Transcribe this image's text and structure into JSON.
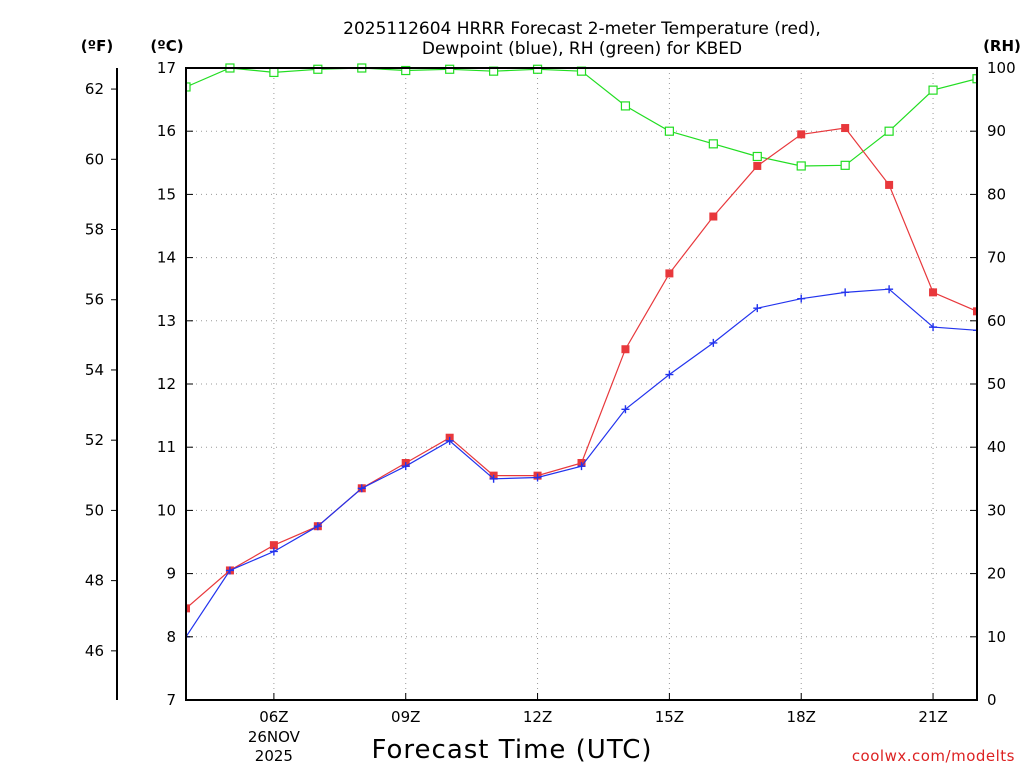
{
  "chart_data": {
    "type": "line",
    "title_line1": "2025112604 HRRR Forecast 2-meter Temperature (red),",
    "title_line2": "Dewpoint (blue), RH (green) for KBED",
    "xlabel": "Forecast Time (UTC)",
    "credit": "coolwx.com/modelts",
    "x_hours": [
      4,
      5,
      6,
      7,
      8,
      9,
      10,
      11,
      12,
      13,
      14,
      15,
      16,
      17,
      18,
      19,
      20,
      21,
      22
    ],
    "xlim": [
      4,
      22
    ],
    "x_ticks": [
      {
        "hour": 6,
        "label": "06Z",
        "sub1": "26NOV",
        "sub2": "2025"
      },
      {
        "hour": 9,
        "label": "09Z"
      },
      {
        "hour": 12,
        "label": "12Z"
      },
      {
        "hour": 15,
        "label": "15Z"
      },
      {
        "hour": 18,
        "label": "18Z"
      },
      {
        "hour": 21,
        "label": "21Z"
      }
    ],
    "left_axis_c": {
      "label": "(ºC)",
      "ylim": [
        7,
        17
      ],
      "ticks": [
        7,
        8,
        9,
        10,
        11,
        12,
        13,
        14,
        15,
        16,
        17
      ]
    },
    "left_axis_f": {
      "label": "(ºF)",
      "ticks": [
        46,
        48,
        50,
        52,
        54,
        56,
        58,
        60,
        62
      ]
    },
    "right_axis_rh": {
      "label": "(RH)",
      "ylim": [
        0,
        100
      ],
      "ticks": [
        0,
        10,
        20,
        30,
        40,
        50,
        60,
        70,
        80,
        90,
        100
      ]
    },
    "grid": true,
    "series": [
      {
        "name": "2-meter Temperature",
        "units": "C",
        "color": "#e8383c",
        "marker": "square-filled",
        "values": [
          8.45,
          9.05,
          9.45,
          9.75,
          10.35,
          10.75,
          11.15,
          10.55,
          10.55,
          10.75,
          12.55,
          13.75,
          14.65,
          15.45,
          15.95,
          16.05,
          15.15,
          13.45,
          13.15
        ]
      },
      {
        "name": "Dewpoint",
        "units": "C",
        "color": "#2233ee",
        "marker": "plus",
        "values": [
          8.0,
          9.05,
          9.35,
          9.75,
          10.35,
          10.7,
          11.1,
          10.5,
          10.52,
          10.7,
          11.6,
          12.15,
          12.65,
          13.2,
          13.35,
          13.45,
          13.5,
          12.9,
          12.85
        ]
      },
      {
        "name": "RH",
        "units": "%",
        "color": "#22dd22",
        "marker": "square-open",
        "values": [
          97,
          100,
          99.3,
          99.8,
          100,
          99.6,
          99.8,
          99.5,
          99.8,
          99.5,
          94,
          90,
          88,
          86,
          84.5,
          84.6,
          90,
          96.5,
          98.3
        ]
      }
    ]
  }
}
